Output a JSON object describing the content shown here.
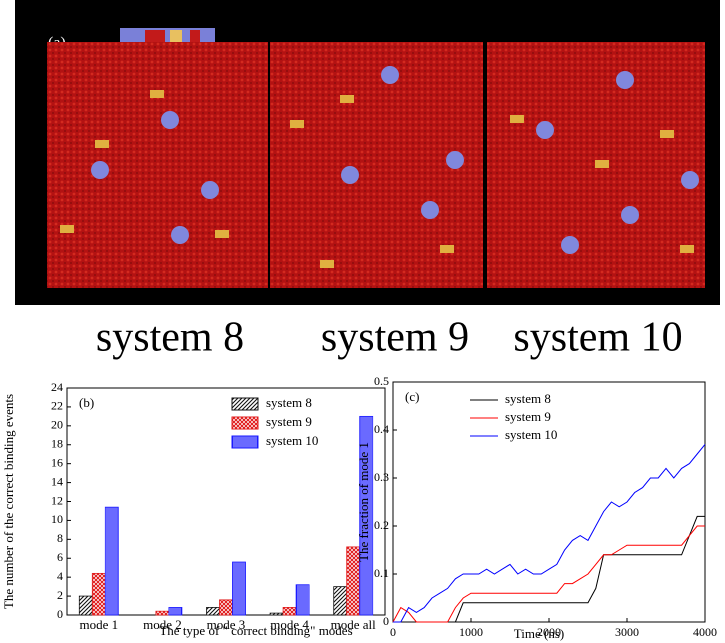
{
  "panel_a": {
    "label": "(a)",
    "captions": [
      "system 8",
      "system 9",
      "system 10"
    ]
  },
  "chart_data": [
    {
      "type": "bar",
      "annotation": "(b)",
      "x_label": "The type of \" correct binding\" modes",
      "y_label": "The number of the correct binding events",
      "categories": [
        "mode 1",
        "mode 2",
        "mode 3",
        "mode 4",
        "mode all"
      ],
      "series": [
        {
          "name": "system 8",
          "color": "#111111",
          "values": [
            2.0,
            0,
            0.8,
            0.2,
            3.0
          ]
        },
        {
          "name": "system 9",
          "color": "#e01818",
          "values": [
            4.4,
            0.4,
            1.6,
            0.8,
            7.2
          ]
        },
        {
          "name": "system 10",
          "color": "#1a1aff",
          "values": [
            11.4,
            0.8,
            5.6,
            3.2,
            21.0
          ]
        }
      ],
      "ylim": [
        0,
        24
      ],
      "yticks": [
        0,
        2,
        4,
        6,
        8,
        10,
        12,
        14,
        16,
        18,
        20,
        22,
        24
      ]
    },
    {
      "type": "line",
      "annotation": "(c)",
      "x_label": "Time (ns)",
      "y_label": "The fraction of mode 1",
      "x": [
        0,
        100,
        200,
        300,
        400,
        500,
        600,
        700,
        800,
        900,
        1000,
        1100,
        1200,
        1300,
        1400,
        1500,
        1600,
        1700,
        1800,
        1900,
        2000,
        2100,
        2200,
        2300,
        2400,
        2500,
        2600,
        2700,
        2800,
        2900,
        3000,
        3100,
        3200,
        3300,
        3400,
        3500,
        3600,
        3700,
        3800,
        3900,
        4000
      ],
      "series": [
        {
          "name": "system 8",
          "color": "#000000",
          "values": [
            0,
            0,
            0,
            0,
            0,
            0,
            0,
            0,
            0,
            0.04,
            0.04,
            0.04,
            0.04,
            0.04,
            0.04,
            0.04,
            0.04,
            0.04,
            0.04,
            0.04,
            0.04,
            0.04,
            0.04,
            0.04,
            0.04,
            0.04,
            0.07,
            0.14,
            0.14,
            0.14,
            0.14,
            0.14,
            0.14,
            0.14,
            0.14,
            0.14,
            0.14,
            0.14,
            0.18,
            0.22,
            0.22
          ]
        },
        {
          "name": "system 9",
          "color": "#ff0000",
          "values": [
            0,
            0.03,
            0.02,
            0,
            0,
            0,
            0,
            0,
            0.03,
            0.05,
            0.06,
            0.06,
            0.06,
            0.06,
            0.06,
            0.06,
            0.06,
            0.06,
            0.06,
            0.06,
            0.06,
            0.06,
            0.08,
            0.08,
            0.09,
            0.1,
            0.12,
            0.14,
            0.14,
            0.15,
            0.16,
            0.16,
            0.16,
            0.16,
            0.16,
            0.16,
            0.16,
            0.16,
            0.18,
            0.2,
            0.2
          ]
        },
        {
          "name": "system 10",
          "color": "#0000ff",
          "values": [
            0,
            0,
            0.03,
            0.02,
            0.03,
            0.05,
            0.06,
            0.07,
            0.09,
            0.1,
            0.1,
            0.1,
            0.11,
            0.1,
            0.11,
            0.12,
            0.1,
            0.11,
            0.1,
            0.1,
            0.11,
            0.12,
            0.15,
            0.17,
            0.18,
            0.17,
            0.2,
            0.23,
            0.25,
            0.24,
            0.25,
            0.27,
            0.28,
            0.3,
            0.3,
            0.32,
            0.3,
            0.32,
            0.33,
            0.35,
            0.37
          ]
        }
      ],
      "xlim": [
        0,
        4000
      ],
      "xticks": [
        0,
        1000,
        2000,
        3000,
        4000
      ],
      "ylim": [
        0,
        0.5
      ],
      "yticks": [
        0.0,
        0.1,
        0.2,
        0.3,
        0.4,
        0.5
      ]
    }
  ]
}
